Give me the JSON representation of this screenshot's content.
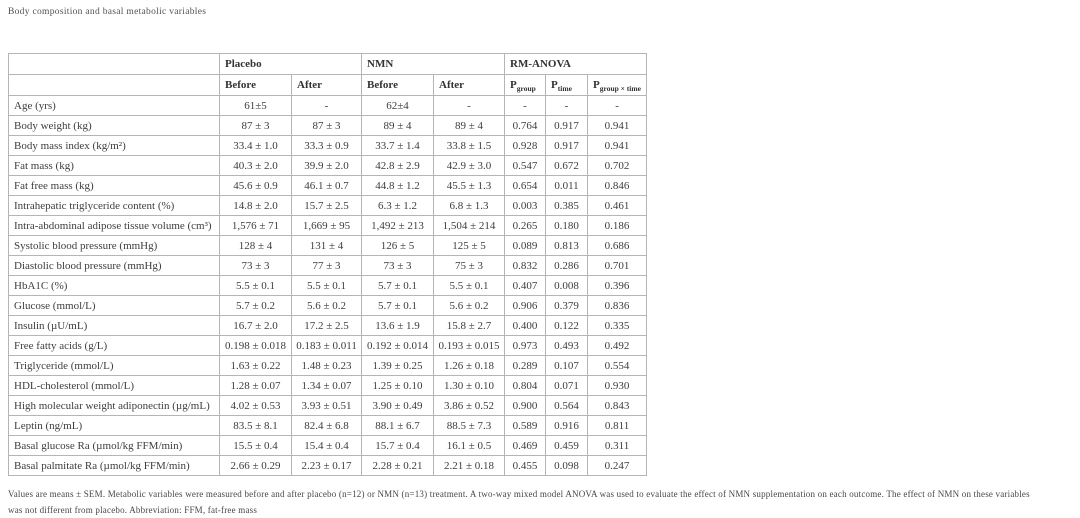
{
  "page": {
    "title": "Body composition and basal metabolic variables"
  },
  "table": {
    "groups": [
      "Placebo",
      "NMN",
      "RM-ANOVA"
    ],
    "sub_headers": [
      "Before",
      "After",
      "Before",
      "After"
    ],
    "p_headers": [
      {
        "main": "P",
        "sub": "group"
      },
      {
        "main": "P",
        "sub": "time"
      },
      {
        "main": "P",
        "sub": "group × time"
      }
    ],
    "rows": [
      {
        "label": "Age (yrs)",
        "cells": [
          "61±5",
          "-",
          "62±4",
          "-",
          "-",
          "-",
          "-"
        ]
      },
      {
        "label": "Body weight (kg)",
        "cells": [
          "87 ± 3",
          "87 ± 3",
          "89 ± 4",
          "89 ± 4",
          "0.764",
          "0.917",
          "0.941"
        ]
      },
      {
        "label": "Body mass index (kg/m²)",
        "cells": [
          "33.4 ± 1.0",
          "33.3 ± 0.9",
          "33.7 ± 1.4",
          "33.8 ± 1.5",
          "0.928",
          "0.917",
          "0.941"
        ]
      },
      {
        "label": "Fat mass (kg)",
        "cells": [
          "40.3 ± 2.0",
          "39.9 ± 2.0",
          "42.8 ± 2.9",
          "42.9 ± 3.0",
          "0.547",
          "0.672",
          "0.702"
        ]
      },
      {
        "label": "Fat free mass (kg)",
        "cells": [
          "45.6 ± 0.9",
          "46.1 ± 0.7",
          "44.8 ± 1.2",
          "45.5 ± 1.3",
          "0.654",
          "0.011",
          "0.846"
        ]
      },
      {
        "label": "Intrahepatic triglyceride content (%)",
        "cells": [
          "14.8 ± 2.0",
          "15.7 ± 2.5",
          "6.3 ± 1.2",
          "6.8 ± 1.3",
          "0.003",
          "0.385",
          "0.461"
        ]
      },
      {
        "label": "Intra-abdominal adipose tissue volume (cm³)",
        "cells": [
          "1,576 ± 71",
          "1,669 ± 95",
          "1,492 ± 213",
          "1,504 ± 214",
          "0.265",
          "0.180",
          "0.186"
        ]
      },
      {
        "label": "Systolic blood pressure (mmHg)",
        "cells": [
          "128 ± 4",
          "131 ± 4",
          "126 ± 5",
          "125 ± 5",
          "0.089",
          "0.813",
          "0.686"
        ]
      },
      {
        "label": "Diastolic blood pressure (mmHg)",
        "cells": [
          "73 ± 3",
          "77 ± 3",
          "73 ± 3",
          "75 ± 3",
          "0.832",
          "0.286",
          "0.701"
        ]
      },
      {
        "label": "HbA1C (%)",
        "cells": [
          "5.5 ± 0.1",
          "5.5 ± 0.1",
          "5.7 ± 0.1",
          "5.5 ± 0.1",
          "0.407",
          "0.008",
          "0.396"
        ]
      },
      {
        "label": "Glucose (mmol/L)",
        "cells": [
          "5.7 ± 0.2",
          "5.6 ± 0.2",
          "5.7 ± 0.1",
          "5.6 ± 0.2",
          "0.906",
          "0.379",
          "0.836"
        ]
      },
      {
        "label": "Insulin (µU/mL)",
        "cells": [
          "16.7 ± 2.0",
          "17.2 ± 2.5",
          "13.6 ± 1.9",
          "15.8 ± 2.7",
          "0.400",
          "0.122",
          "0.335"
        ]
      },
      {
        "label": "Free fatty acids (g/L)",
        "cells": [
          "0.198 ± 0.018",
          "0.183 ± 0.011",
          "0.192 ± 0.014",
          "0.193 ± 0.015",
          "0.973",
          "0.493",
          "0.492"
        ]
      },
      {
        "label": "Triglyceride (mmol/L)",
        "cells": [
          "1.63 ± 0.22",
          "1.48 ± 0.23",
          "1.39 ± 0.25",
          "1.26 ± 0.18",
          "0.289",
          "0.107",
          "0.554"
        ]
      },
      {
        "label": "HDL-cholesterol (mmol/L)",
        "cells": [
          "1.28 ± 0.07",
          "1.34 ± 0.07",
          "1.25 ± 0.10",
          "1.30 ± 0.10",
          "0.804",
          "0.071",
          "0.930"
        ]
      },
      {
        "label": "High molecular weight adiponectin (µg/mL)",
        "cells": [
          "4.02 ± 0.53",
          "3.93 ± 0.51",
          "3.90 ± 0.49",
          "3.86 ± 0.52",
          "0.900",
          "0.564",
          "0.843"
        ]
      },
      {
        "label": "Leptin (ng/mL)",
        "cells": [
          "83.5 ± 8.1",
          "82.4 ± 6.8",
          "88.1 ± 6.7",
          "88.5 ± 7.3",
          "0.589",
          "0.916",
          "0.811"
        ]
      },
      {
        "label": "Basal glucose Ra (µmol/kg FFM/min)",
        "cells": [
          "15.5 ± 0.4",
          "15.4 ± 0.4",
          "15.7 ± 0.4",
          "16.1 ± 0.5",
          "0.469",
          "0.459",
          "0.311"
        ]
      },
      {
        "label": "Basal palmitate Ra (µmol/kg FFM/min)",
        "cells": [
          "2.66 ± 0.29",
          "2.23 ± 0.17",
          "2.28 ± 0.21",
          "2.21 ± 0.18",
          "0.455",
          "0.098",
          "0.247"
        ]
      }
    ]
  },
  "footnote": {
    "lines": [
      "Values are means ± SEM. Metabolic variables were measured before and after placebo (n=12) or NMN (n=13) treatment. A two-way mixed model ANOVA was used to evaluate the effect of NMN supplementation on each outcome. The effect of NMN on these variables",
      "was not different from placebo. Abbreviation: FFM, fat-free mass"
    ]
  }
}
